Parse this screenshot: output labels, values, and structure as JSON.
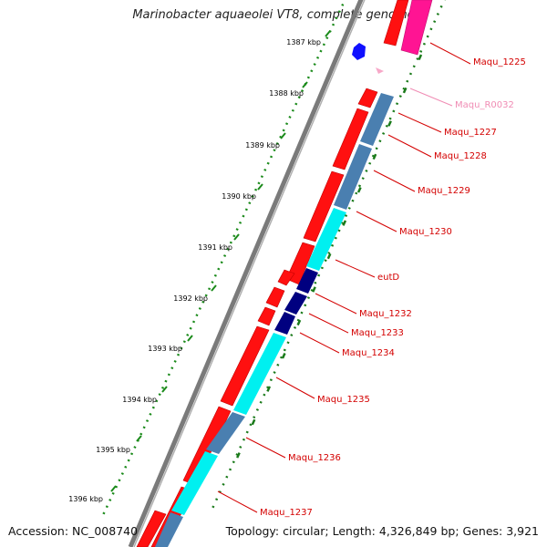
{
  "title": "Marinobacter aquaeolei VT8, complete genome",
  "footer": {
    "accession": "Accession: NC_008740",
    "summary": "Topology: circular; Length: 4,326,849 bp; Genes: 3,921"
  },
  "kbp_ticks": [
    "1387 kbp",
    "1388 kbp",
    "1389 kbp",
    "1390 kbp",
    "1391 kbp",
    "1392 kbp",
    "1393 kbp",
    "1394 kbp",
    "1395 kbp",
    "1396 kbp"
  ],
  "genes": [
    {
      "label": "Maqu_1225",
      "color": "#d40000"
    },
    {
      "label": "Maqu_R0032",
      "color": "#f08cb4"
    },
    {
      "label": "Maqu_1227",
      "color": "#d40000"
    },
    {
      "label": "Maqu_1228",
      "color": "#d40000"
    },
    {
      "label": "Maqu_1229",
      "color": "#d40000"
    },
    {
      "label": "Maqu_1230",
      "color": "#d40000"
    },
    {
      "label": "eutD",
      "color": "#d40000"
    },
    {
      "label": "Maqu_1232",
      "color": "#d40000"
    },
    {
      "label": "Maqu_1233",
      "color": "#d40000"
    },
    {
      "label": "Maqu_1234",
      "color": "#d40000"
    },
    {
      "label": "Maqu_1235",
      "color": "#d40000"
    },
    {
      "label": "Maqu_1236",
      "color": "#d40000"
    },
    {
      "label": "Maqu_1237",
      "color": "#d40000"
    }
  ],
  "colors": {
    "cds": "#ff1010",
    "rna": "#ff1493",
    "cog_steel": "#4a7fb0",
    "cog_cyan": "#00f0f0",
    "cog_navy": "#000080",
    "backbone": "#808080",
    "gc_dots": "#1a7a1a",
    "tick_dots": "#1a8a1a"
  }
}
